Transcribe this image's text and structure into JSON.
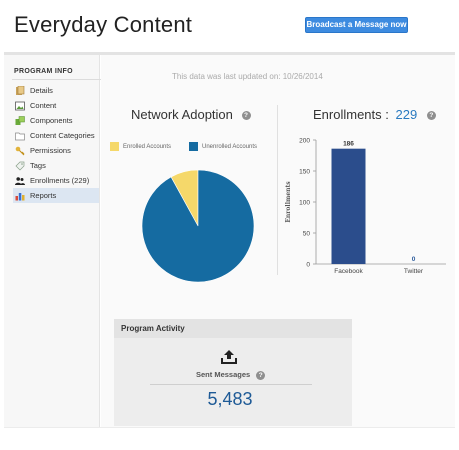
{
  "header": {
    "title": "Everyday Content",
    "broadcast_label": "Broadcast a Message now"
  },
  "sidebar": {
    "heading": "PROGRAM INFO",
    "items": [
      {
        "label": "Details",
        "icon": "details-icon"
      },
      {
        "label": "Content",
        "icon": "content-icon"
      },
      {
        "label": "Components",
        "icon": "components-icon"
      },
      {
        "label": "Content Categories",
        "icon": "content-categories-icon"
      },
      {
        "label": "Permissions",
        "icon": "key-icon"
      },
      {
        "label": "Tags",
        "icon": "tag-icon"
      },
      {
        "label": "Enrollments (229)",
        "icon": "users-icon"
      },
      {
        "label": "Reports",
        "icon": "bar-chart-icon",
        "active": true
      }
    ]
  },
  "main": {
    "updated_text": "This data was last updated on: 10/26/2014",
    "network": {
      "title": "Network Adoption",
      "legend": [
        {
          "label": "Enrolled Accounts",
          "color": "#f5d86a"
        },
        {
          "label": "Unenrolled Accounts",
          "color": "#156ba1"
        }
      ]
    },
    "enrollments": {
      "title": "Enrollments :",
      "count": "229"
    },
    "activity": {
      "header": "Program Activity",
      "sent_label": "Sent Messages",
      "sent_value": "5,483"
    }
  },
  "chart_data": [
    {
      "type": "pie",
      "title": "Network Adoption",
      "labels": [
        "Enrolled Accounts",
        "Unenrolled Accounts"
      ],
      "values": [
        8,
        92
      ],
      "colors": [
        "#f5d86a",
        "#156ba1"
      ],
      "legend": "top"
    },
    {
      "type": "bar",
      "categories": [
        "Facebook",
        "Twitter"
      ],
      "values": [
        186,
        0
      ],
      "data_labels": [
        "186",
        "0"
      ],
      "ylabel": "Enrollments",
      "ylim": [
        0,
        200
      ],
      "yticks": [
        0,
        50,
        100,
        150,
        200
      ],
      "bar_color": "#2b4d8c",
      "grid": false
    }
  ]
}
